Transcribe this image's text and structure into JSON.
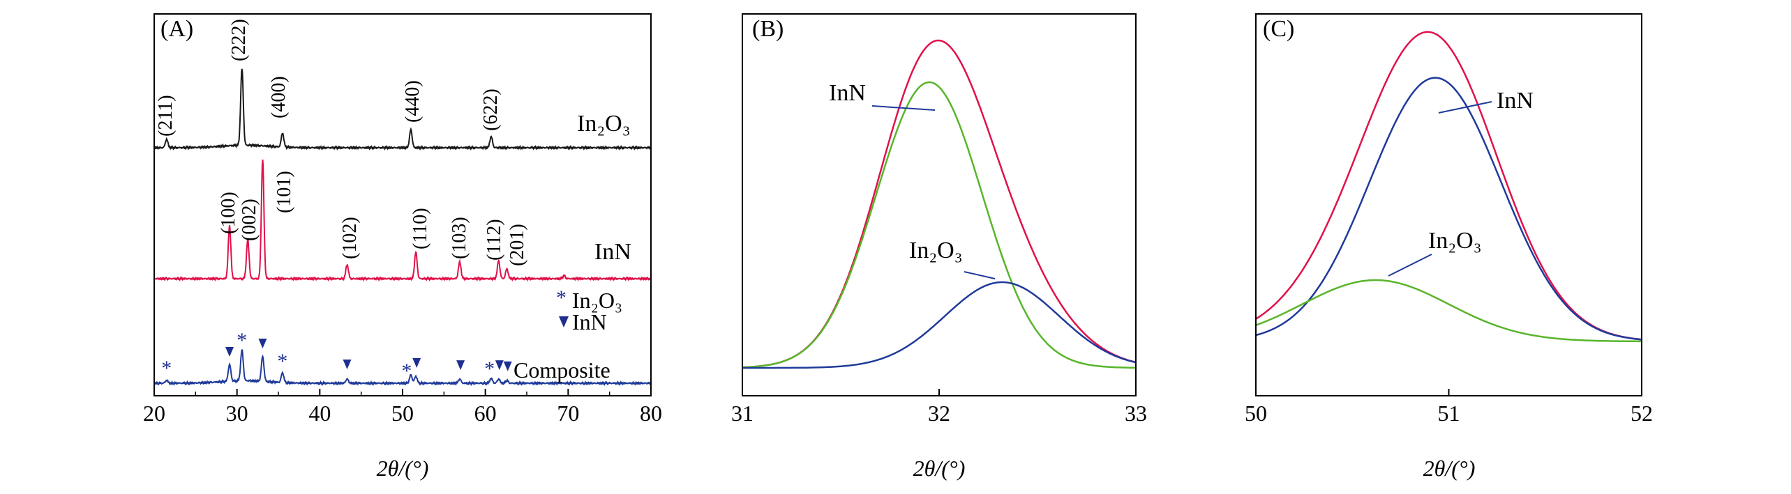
{
  "figure": {
    "x_axis_label": "2θ/(°)",
    "colors": {
      "black": "#1a1a1a",
      "red": "#e0114a",
      "blue": "#1f3a9a",
      "green": "#58b52a",
      "marker_blue": "#1f2f8f"
    }
  },
  "chart_data": [
    {
      "panel_label": "(A)",
      "type": "line",
      "title": "",
      "xlabel": "2θ/(°)",
      "ylabel": "",
      "xlim": [
        20,
        80
      ],
      "xticks": [
        "20",
        "30",
        "40",
        "50",
        "60",
        "70",
        "80"
      ],
      "series": [
        {
          "name": "In2O3",
          "label": "In₂O₃",
          "color": "#1a1a1a",
          "peaks": [
            {
              "pos": 21.5,
              "height": 0.6,
              "hkl": "(211)"
            },
            {
              "pos": 30.6,
              "height": 5.5,
              "hkl": "(222)"
            },
            {
              "pos": 35.5,
              "height": 1.0,
              "hkl": "(400)"
            },
            {
              "pos": 51.0,
              "height": 1.3,
              "hkl": "(440)"
            },
            {
              "pos": 60.7,
              "height": 0.8,
              "hkl": "(622)"
            }
          ]
        },
        {
          "name": "InN",
          "label": "InN",
          "color": "#e0114a",
          "peaks": [
            {
              "pos": 29.1,
              "height": 3.8,
              "hkl": "(100)"
            },
            {
              "pos": 31.3,
              "height": 2.8,
              "hkl": "(002)"
            },
            {
              "pos": 33.1,
              "height": 8.6,
              "hkl": "(101)"
            },
            {
              "pos": 43.3,
              "height": 1.0,
              "hkl": "(102)"
            },
            {
              "pos": 51.6,
              "height": 1.9,
              "hkl": "(110)"
            },
            {
              "pos": 56.9,
              "height": 1.2,
              "hkl": "(103)"
            },
            {
              "pos": 61.6,
              "height": 1.3,
              "hkl": "(112)"
            },
            {
              "pos": 62.6,
              "height": 0.7,
              "hkl": "(201)"
            },
            {
              "pos": 69.5,
              "height": 0.2,
              "hkl": ""
            }
          ]
        },
        {
          "name": "Composite",
          "label": "Composite",
          "color": "#1f3a9a",
          "peaks": [
            {
              "pos": 21.5,
              "height": 0.2
            },
            {
              "pos": 29.1,
              "height": 1.2
            },
            {
              "pos": 30.6,
              "height": 2.2
            },
            {
              "pos": 33.1,
              "height": 1.8
            },
            {
              "pos": 35.5,
              "height": 0.7
            },
            {
              "pos": 43.3,
              "height": 0.3
            },
            {
              "pos": 51.0,
              "height": 0.6
            },
            {
              "pos": 51.6,
              "height": 0.5
            },
            {
              "pos": 56.9,
              "height": 0.3
            },
            {
              "pos": 60.7,
              "height": 0.35
            },
            {
              "pos": 61.6,
              "height": 0.3
            },
            {
              "pos": 62.6,
              "height": 0.2
            }
          ],
          "markers": [
            {
              "pos": 21.5,
              "kind": "star"
            },
            {
              "pos": 29.1,
              "kind": "triangle"
            },
            {
              "pos": 30.6,
              "kind": "star"
            },
            {
              "pos": 33.1,
              "kind": "triangle"
            },
            {
              "pos": 35.5,
              "kind": "star"
            },
            {
              "pos": 43.3,
              "kind": "triangle"
            },
            {
              "pos": 50.5,
              "kind": "star"
            },
            {
              "pos": 51.7,
              "kind": "triangle"
            },
            {
              "pos": 57.0,
              "kind": "triangle"
            },
            {
              "pos": 60.5,
              "kind": "star"
            },
            {
              "pos": 61.7,
              "kind": "triangle"
            },
            {
              "pos": 62.7,
              "kind": "triangle"
            }
          ]
        }
      ],
      "legend": [
        {
          "symbol": "star",
          "label": "In₂O₃"
        },
        {
          "symbol": "triangle",
          "label": "InN"
        }
      ]
    },
    {
      "panel_label": "(B)",
      "type": "line",
      "title": "",
      "xlabel": "2θ/(°)",
      "ylabel": "",
      "xlim": [
        31,
        33
      ],
      "xticks": [
        "31",
        "32",
        "33"
      ],
      "series": [
        {
          "name": "sum",
          "color": "#e0114a",
          "components": [
            "InN",
            "In2O3"
          ]
        },
        {
          "name": "InN",
          "label": "InN",
          "color": "#58b52a",
          "center": 31.95,
          "sigma": 0.27,
          "amplitude": 1.0
        },
        {
          "name": "In2O3",
          "label": "In₂O₃",
          "color": "#1f3a9a",
          "center": 32.32,
          "sigma": 0.29,
          "amplitude": 0.3
        }
      ]
    },
    {
      "panel_label": "(C)",
      "type": "line",
      "title": "",
      "xlabel": "2θ/(°)",
      "ylabel": "",
      "xlim": [
        50,
        52
      ],
      "xticks": [
        "50",
        "51",
        "52"
      ],
      "series": [
        {
          "name": "sum",
          "color": "#e0114a",
          "components": [
            "InN",
            "In2O3"
          ]
        },
        {
          "name": "InN",
          "label": "InN",
          "color": "#1f3a9a",
          "center": 50.93,
          "sigma": 0.34,
          "amplitude": 0.86
        },
        {
          "name": "In2O3",
          "label": "In₂O₃",
          "color": "#58b52a",
          "center": 50.62,
          "sigma": 0.38,
          "amplitude": 0.2
        }
      ]
    }
  ]
}
